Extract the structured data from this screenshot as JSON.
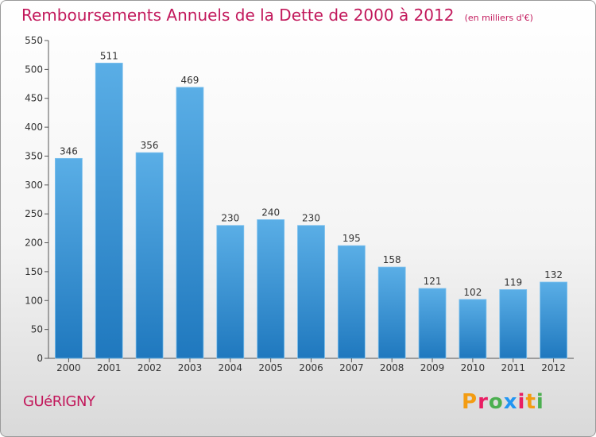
{
  "header": {
    "title": "Remboursements Annuels de la Dette de 2000 à 2012",
    "unit": "(en milliers d'€)"
  },
  "footer": {
    "commune": "GUéRIGNY",
    "logo_letters": [
      "P",
      "r",
      "o",
      "x",
      "i",
      "t",
      "i"
    ]
  },
  "colors": {
    "title": "#c2185b",
    "bar_top": "#5aaee6",
    "bar_bottom": "#1f78be",
    "logo": [
      "#f39c12",
      "#e91e63",
      "#4caf50",
      "#2196f3",
      "#e91e63",
      "#f39c12",
      "#4caf50"
    ]
  },
  "chart_data": {
    "type": "bar",
    "title": "Remboursements Annuels de la Dette de 2000 à 2012",
    "categories": [
      "2000",
      "2001",
      "2002",
      "2003",
      "2004",
      "2005",
      "2006",
      "2007",
      "2008",
      "2009",
      "2010",
      "2011",
      "2012"
    ],
    "values": [
      346,
      511,
      356,
      469,
      230,
      240,
      230,
      195,
      158,
      121,
      102,
      119,
      132
    ],
    "ylim": [
      0,
      550
    ],
    "yticks": [
      0,
      50,
      100,
      150,
      200,
      250,
      300,
      350,
      400,
      450,
      500,
      550
    ],
    "grid": false,
    "xlabel": "",
    "ylabel": ""
  }
}
